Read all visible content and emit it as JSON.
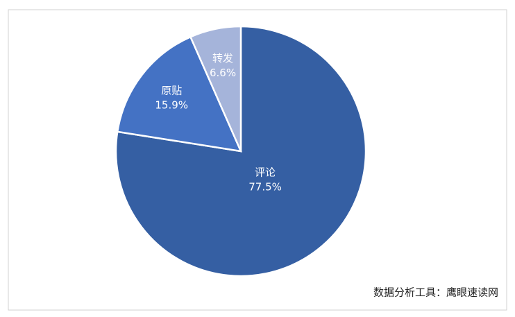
{
  "chart_data": {
    "type": "pie",
    "categories": [
      "评论",
      "原贴",
      "转发"
    ],
    "values": [
      77.5,
      15.9,
      6.6
    ],
    "value_labels": [
      "77.5%",
      "15.9%",
      "6.6%"
    ],
    "colors": [
      "#355fa3",
      "#4472c4",
      "#a5b4da"
    ],
    "source": "数据分析工具：鹰眼速读网"
  }
}
